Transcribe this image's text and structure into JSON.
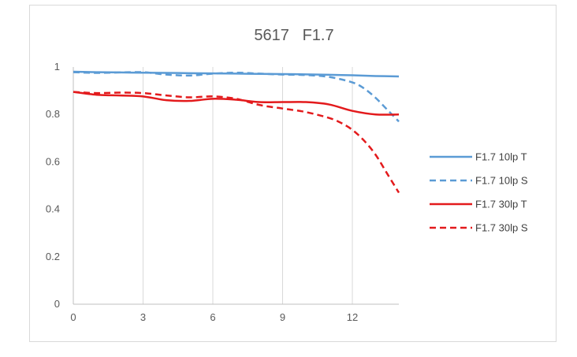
{
  "chart_data": {
    "type": "line",
    "title": "5617   F1.7",
    "xlabel": "",
    "ylabel": "",
    "xlim": [
      0,
      14
    ],
    "ylim": [
      0,
      1
    ],
    "x_ticks": [
      0,
      3,
      6,
      9,
      12
    ],
    "y_ticks": [
      0,
      0.2,
      0.4,
      0.6,
      0.8,
      1
    ],
    "y_tick_labels": [
      "0",
      "0.2",
      "0.4",
      "0.6",
      "0.8",
      "1"
    ],
    "grid": "vertical",
    "legend_position": "right",
    "series": [
      {
        "name": "F1.7 10lp T",
        "color": "#5b9bd5",
        "dash": "solid",
        "x": [
          0,
          1,
          2,
          3,
          4,
          5,
          6,
          7,
          8,
          9,
          10,
          11,
          12,
          13,
          14
        ],
        "y": [
          0.98,
          0.978,
          0.977,
          0.976,
          0.975,
          0.974,
          0.973,
          0.972,
          0.971,
          0.97,
          0.969,
          0.967,
          0.965,
          0.962,
          0.96
        ]
      },
      {
        "name": "F1.7 10lp S",
        "color": "#5b9bd5",
        "dash": "dashed",
        "x": [
          0,
          1,
          2,
          3,
          4,
          5,
          6,
          7,
          8,
          9,
          10,
          11,
          12,
          12.5,
          13,
          13.5,
          14
        ],
        "y": [
          0.978,
          0.975,
          0.977,
          0.978,
          0.968,
          0.964,
          0.972,
          0.976,
          0.972,
          0.968,
          0.966,
          0.958,
          0.935,
          0.91,
          0.87,
          0.82,
          0.77
        ]
      },
      {
        "name": "F1.7 30lp T",
        "color": "#e31a1c",
        "dash": "solid",
        "x": [
          0,
          1,
          2,
          3,
          4,
          5,
          6,
          7,
          8,
          9,
          10,
          11,
          12,
          13,
          14
        ],
        "y": [
          0.895,
          0.883,
          0.88,
          0.876,
          0.86,
          0.857,
          0.866,
          0.862,
          0.852,
          0.852,
          0.852,
          0.842,
          0.815,
          0.8,
          0.8
        ]
      },
      {
        "name": "F1.7 30lp S",
        "color": "#e31a1c",
        "dash": "dashed",
        "x": [
          0,
          1,
          2,
          3,
          4,
          5,
          6,
          7,
          8,
          9,
          10,
          11,
          11.5,
          12,
          12.5,
          13,
          13.5,
          14
        ],
        "y": [
          0.895,
          0.89,
          0.892,
          0.89,
          0.88,
          0.872,
          0.876,
          0.866,
          0.84,
          0.825,
          0.81,
          0.785,
          0.765,
          0.735,
          0.69,
          0.63,
          0.55,
          0.47
        ]
      }
    ]
  }
}
